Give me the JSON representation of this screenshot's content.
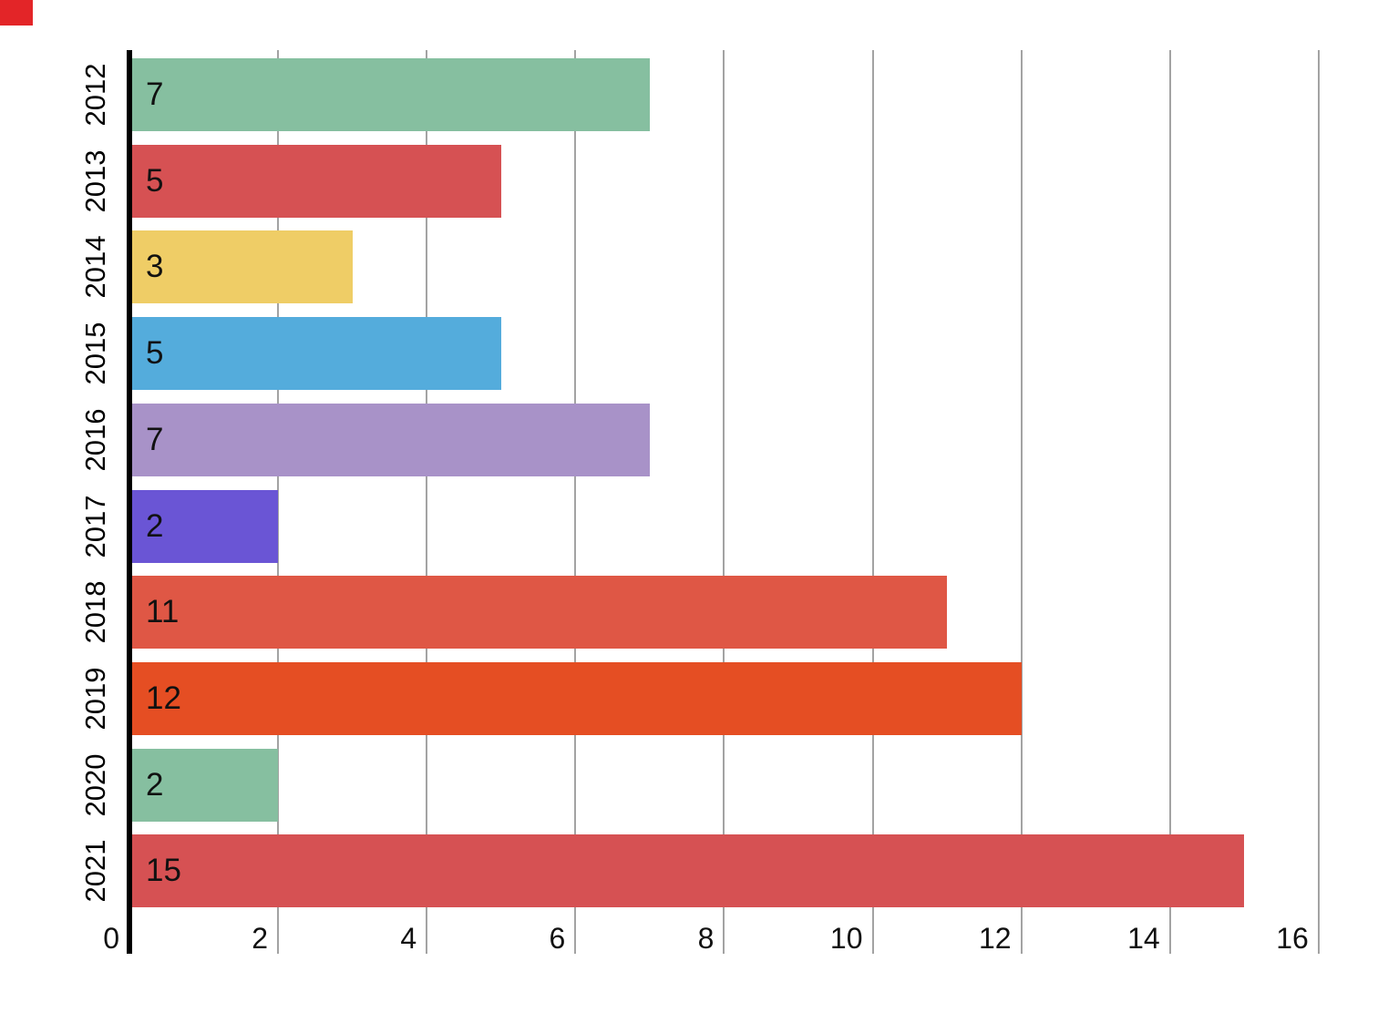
{
  "chart_data": {
    "type": "bar",
    "orientation": "horizontal",
    "title": "",
    "xlabel": "",
    "ylabel": "",
    "categories": [
      "2012",
      "2013",
      "2014",
      "2015",
      "2016",
      "2017",
      "2018",
      "2019",
      "2020",
      "2021"
    ],
    "values": [
      7,
      5,
      3,
      5,
      7,
      2,
      11,
      12,
      2,
      15
    ],
    "value_labels": [
      "7",
      "5",
      "3",
      "5",
      "7",
      "2",
      "11",
      "12",
      "2",
      "15"
    ],
    "bar_colors": [
      "#86BFA0",
      "#D65153",
      "#EFCD66",
      "#54ACDC",
      "#A892C8",
      "#6A55D5",
      "#DF5745",
      "#E54E23",
      "#86BFA0",
      "#D65153"
    ],
    "xlim": [
      0,
      16
    ],
    "x_ticks": [
      0,
      2,
      4,
      6,
      8,
      10,
      12,
      14,
      16
    ],
    "x_tick_labels": [
      "0",
      "2",
      "4",
      "6",
      "8",
      "10",
      "12",
      "14",
      "16"
    ],
    "grid": "vertical-gridlines-on",
    "legend": "none",
    "value_label_position": "inside-left",
    "axis_spine_color": "#000000",
    "gridline_color": "#a3a3a3",
    "text_color": "#111111",
    "background_color": "#ffffff"
  },
  "corner_marker_color": "#E32528"
}
